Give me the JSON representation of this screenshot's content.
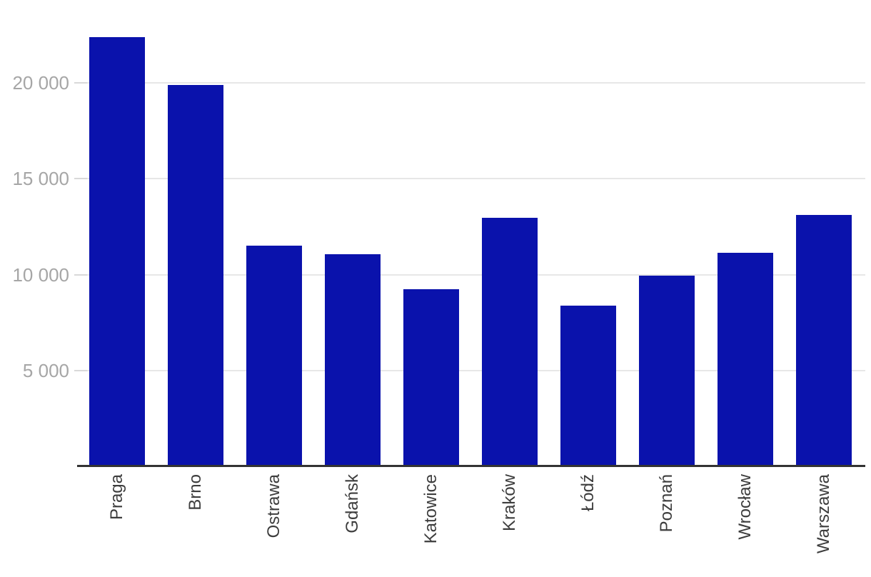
{
  "chart_data": {
    "type": "bar",
    "title": "",
    "xlabel": "",
    "ylabel": "",
    "categories": [
      "Praga",
      "Brno",
      "Ostrawa",
      "Gdańsk",
      "Katowice",
      "Kraków",
      "Łódź",
      "Poznań",
      "Wrocław",
      "Warszawa"
    ],
    "values": [
      22400,
      19900,
      11500,
      11050,
      9250,
      12950,
      8400,
      9950,
      11150,
      13100
    ],
    "ylim": [
      0,
      24000
    ],
    "yticks": [
      5000,
      10000,
      15000,
      20000
    ],
    "ytick_labels": [
      "5 000",
      "10 000",
      "15 000",
      "20 000"
    ],
    "grid": true,
    "legend": "none",
    "colors": {
      "bar": "#0a12ac",
      "gridline": "#e7e7e7",
      "tick": "#d9d9d9",
      "axis_line": "#333333",
      "y_label_text": "#a6a6a6",
      "x_label_text": "#3d3d3d",
      "background": "#ffffff"
    }
  }
}
